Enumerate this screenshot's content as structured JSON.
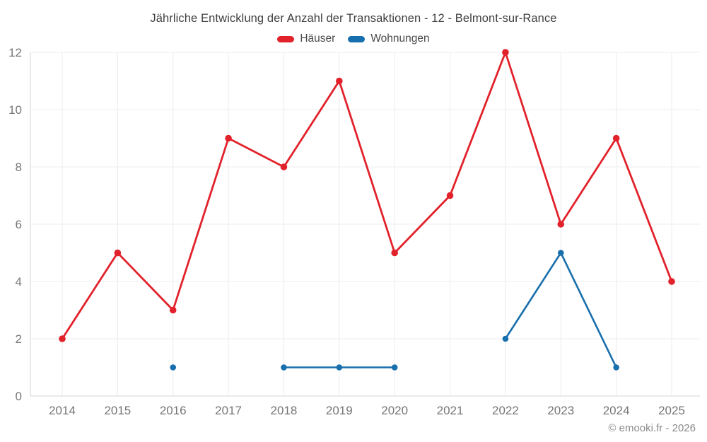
{
  "chart_data": {
    "type": "line",
    "title": "Jährliche Entwicklung der Anzahl der Transaktionen - 12 - Belmont-sur-Rance",
    "x": [
      2014,
      2015,
      2016,
      2017,
      2018,
      2019,
      2020,
      2021,
      2022,
      2023,
      2024,
      2025
    ],
    "series": [
      {
        "name": "Häuser",
        "color": "#e2222b",
        "values": [
          2,
          5,
          3,
          9,
          8,
          11,
          5,
          7,
          12,
          6,
          9,
          4
        ]
      },
      {
        "name": "Wohnungen",
        "color": "#186fad",
        "values": [
          null,
          null,
          1,
          null,
          1,
          1,
          1,
          null,
          2,
          5,
          1,
          null
        ]
      }
    ],
    "ylim": [
      0,
      12
    ],
    "yticks": [
      0,
      2,
      4,
      6,
      8,
      10,
      12
    ],
    "grid": true,
    "legend_position": "top",
    "axis_text_color": "#767676",
    "grid_color": "#ececec",
    "axis_line_color": "#d4d4d4"
  },
  "footer": {
    "copyright": "© emooki.fr - 2026"
  }
}
